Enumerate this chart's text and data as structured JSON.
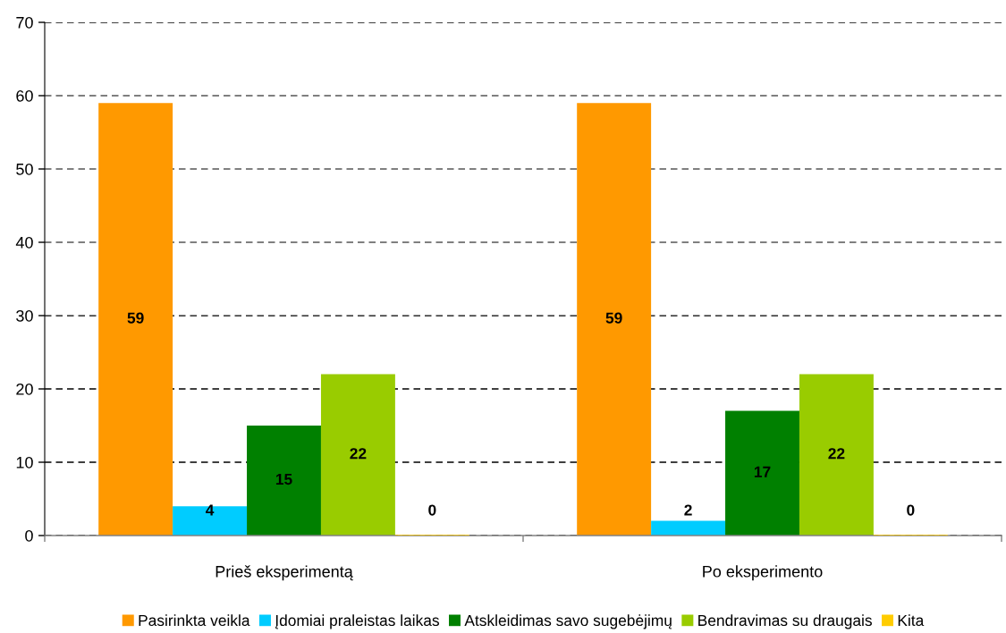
{
  "chart_data": {
    "type": "bar",
    "categories": [
      "Prieš eksperimentą",
      "Po eksperimento"
    ],
    "series": [
      {
        "name": "Pasirinkta veikla",
        "color": "#ff9900",
        "values": [
          59,
          59
        ]
      },
      {
        "name": "Įdomiai praleistas laikas",
        "color": "#00ccff",
        "values": [
          4,
          2
        ]
      },
      {
        "name": "Atskleidimas savo sugebėjimų",
        "color": "#008000",
        "values": [
          15,
          17
        ]
      },
      {
        "name": "Bendravimas su draugais",
        "color": "#99cc00",
        "values": [
          22,
          22
        ]
      },
      {
        "name": "Kita",
        "color": "#ffcc00",
        "values": [
          0,
          0
        ]
      }
    ],
    "ylim": [
      0,
      70
    ],
    "yticks": [
      0,
      10,
      20,
      30,
      40,
      50,
      60,
      70
    ],
    "grid": "y",
    "legend": "bottom",
    "data_labels": true
  }
}
